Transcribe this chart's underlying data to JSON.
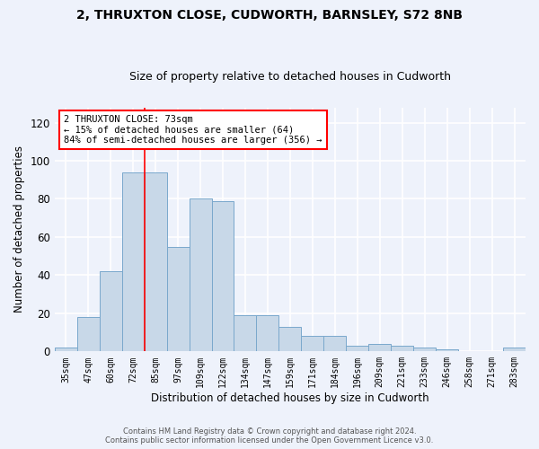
{
  "title1": "2, THRUXTON CLOSE, CUDWORTH, BARNSLEY, S72 8NB",
  "title2": "Size of property relative to detached houses in Cudworth",
  "xlabel": "Distribution of detached houses by size in Cudworth",
  "ylabel": "Number of detached properties",
  "categories": [
    "35sqm",
    "47sqm",
    "60sqm",
    "72sqm",
    "85sqm",
    "97sqm",
    "109sqm",
    "122sqm",
    "134sqm",
    "147sqm",
    "159sqm",
    "171sqm",
    "184sqm",
    "196sqm",
    "209sqm",
    "221sqm",
    "233sqm",
    "246sqm",
    "258sqm",
    "271sqm",
    "283sqm"
  ],
  "values": [
    2,
    18,
    42,
    94,
    94,
    55,
    80,
    79,
    19,
    19,
    13,
    8,
    8,
    3,
    4,
    3,
    2,
    1,
    0,
    0,
    2
  ],
  "bar_color": "#c8d8e8",
  "bar_edge_color": "#7aa8cc",
  "ylim": [
    0,
    128
  ],
  "yticks": [
    0,
    20,
    40,
    60,
    80,
    100,
    120
  ],
  "red_line_x": 3.5,
  "annotation_text": "2 THRUXTON CLOSE: 73sqm\n← 15% of detached houses are smaller (64)\n84% of semi-detached houses are larger (356) →",
  "annotation_box_color": "white",
  "annotation_border_color": "red",
  "footer": "Contains HM Land Registry data © Crown copyright and database right 2024.\nContains public sector information licensed under the Open Government Licence v3.0.",
  "background_color": "#eef2fb",
  "grid_color": "white",
  "title1_fontsize": 10,
  "title2_fontsize": 9
}
